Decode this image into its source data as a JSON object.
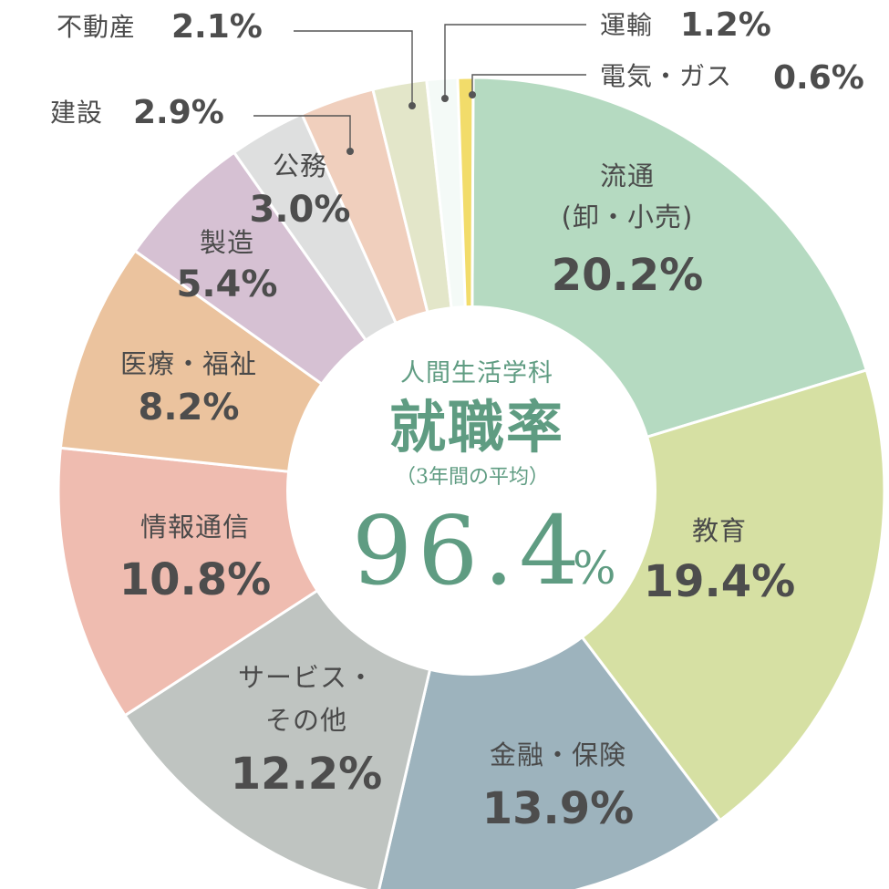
{
  "chart_data": {
    "type": "pie",
    "donut": true,
    "center": {
      "department": "人間生活学科",
      "title": "就職率",
      "subtitle": "（3年間の平均）",
      "rate": "96.4",
      "unit": "%"
    },
    "slices": [
      {
        "label_lines": [
          "流通",
          "(卸・小売)"
        ],
        "value": 20.2,
        "value_text": "20.2%",
        "color": "#b5dac1",
        "placement": "inside"
      },
      {
        "label_lines": [
          "教育"
        ],
        "value": 19.4,
        "value_text": "19.4%",
        "color": "#d6e0a3",
        "placement": "inside"
      },
      {
        "label_lines": [
          "金融・保険"
        ],
        "value": 13.9,
        "value_text": "13.9%",
        "color": "#9db3bd",
        "placement": "inside"
      },
      {
        "label_lines": [
          "サービス・",
          "その他"
        ],
        "value": 12.2,
        "value_text": "12.2%",
        "color": "#bfc4c1",
        "placement": "inside"
      },
      {
        "label_lines": [
          "情報通信"
        ],
        "value": 10.8,
        "value_text": "10.8%",
        "color": "#efbcb0",
        "placement": "inside"
      },
      {
        "label_lines": [
          "医療・福祉"
        ],
        "value": 8.2,
        "value_text": "8.2%",
        "color": "#ebc39e",
        "placement": "inside"
      },
      {
        "label_lines": [
          "製造"
        ],
        "value": 5.4,
        "value_text": "5.4%",
        "color": "#d6c1d3",
        "placement": "inside"
      },
      {
        "label_lines": [
          "公務"
        ],
        "value": 3.0,
        "value_text": "3.0%",
        "color": "#dedfdf",
        "placement": "inside"
      },
      {
        "label_lines": [
          "建設"
        ],
        "value": 2.9,
        "value_text": "2.9%",
        "color": "#f0cfbd",
        "placement": "outside"
      },
      {
        "label_lines": [
          "不動産"
        ],
        "value": 2.1,
        "value_text": "2.1%",
        "color": "#e3e6c9",
        "placement": "outside"
      },
      {
        "label_lines": [
          "運輸"
        ],
        "value": 1.2,
        "value_text": "1.2%",
        "color": "#f4faf7",
        "placement": "outside"
      },
      {
        "label_lines": [
          "電気・ガス"
        ],
        "value": 0.6,
        "value_text": "0.6%",
        "color": "#f2dc6a",
        "placement": "outside"
      }
    ]
  }
}
